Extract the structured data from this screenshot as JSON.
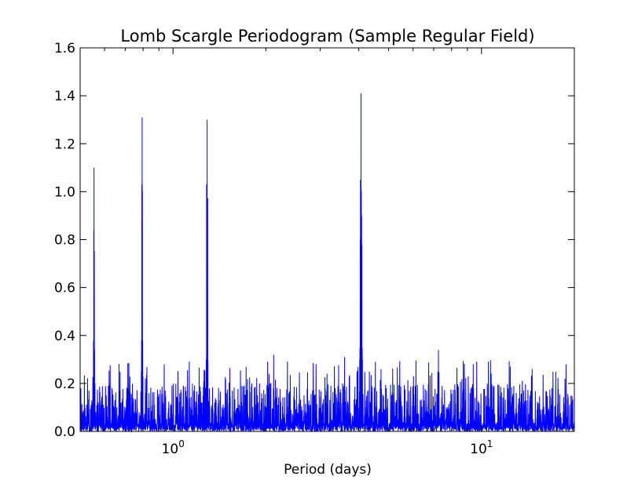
{
  "chart_data": {
    "type": "line",
    "title": "Lomb Scargle Periodogram (Sample Regular Field)",
    "xlabel": "Period (days)",
    "ylabel": "",
    "x_scale": "log",
    "xlim": [
      0.5,
      20
    ],
    "ylim": [
      0,
      1.6
    ],
    "x_major_ticks": [
      {
        "value": 1,
        "base": "10",
        "exp": "0"
      },
      {
        "value": 10,
        "base": "10",
        "exp": "1"
      }
    ],
    "y_ticks": [
      0.0,
      0.2,
      0.4,
      0.6,
      0.8,
      1.0,
      1.2,
      1.4,
      1.6
    ],
    "y_tick_labels": [
      "0.0",
      "0.2",
      "0.4",
      "0.6",
      "0.8",
      "1.0",
      "1.2",
      "1.4",
      "1.6"
    ],
    "grid": false,
    "legend": "none",
    "line_color": "#0000ff",
    "noise": {
      "x_start": 0.5,
      "x_end": 20,
      "samples": 2800,
      "base_max": 0.2,
      "typical_max": 0.3
    },
    "peaks": [
      {
        "x": 0.5546,
        "y": 1.1,
        "shoulders": [
          0.84,
          0.38,
          0.22
        ]
      },
      {
        "x": 0.7942,
        "y": 1.31,
        "shoulders": [
          1.03,
          0.38,
          0.25
        ]
      },
      {
        "x": 1.29,
        "y": 1.3,
        "shoulders": [
          0.94,
          1.03,
          0.3
        ]
      },
      {
        "x": 4.07,
        "y": 1.41,
        "shoulders": [
          1.04,
          1.05,
          0.8,
          0.35,
          0.3
        ]
      },
      {
        "x": 7.25,
        "y": 0.34,
        "shoulders": [
          0.18,
          0.25
        ]
      },
      {
        "x": 2.12,
        "y": 0.32,
        "shoulders": [
          0.18
        ]
      },
      {
        "x": 3.6,
        "y": 0.31,
        "shoulders": [
          0.2
        ]
      },
      {
        "x": 9.4,
        "y": 0.28,
        "shoulders": [
          0.18
        ]
      }
    ],
    "series": [
      {
        "name": "",
        "color": "#0000ff"
      }
    ]
  }
}
